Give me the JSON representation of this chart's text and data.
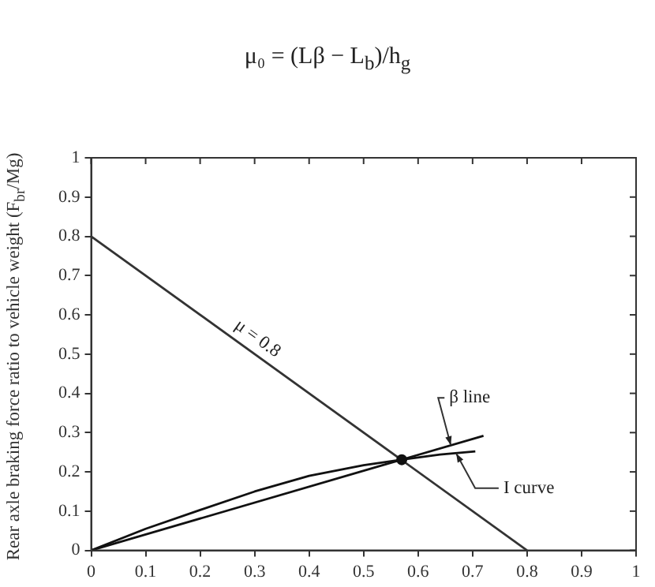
{
  "chart_data": {
    "type": "line",
    "title": "μ₀ = (Lβ − L$_{b}$)/h$_{g}$",
    "ylabel": "Rear axle braking force ratio to vehicle weight (F$_{br}$/Mg)",
    "xlim": [
      0,
      1
    ],
    "ylim": [
      0,
      1
    ],
    "xticks": [
      0,
      0.1,
      0.2,
      0.3,
      0.4,
      0.5,
      0.6,
      0.7,
      0.8,
      0.9,
      1
    ],
    "yticks": [
      0,
      0.1,
      0.2,
      0.3,
      0.4,
      0.5,
      0.6,
      0.7,
      0.8,
      0.9,
      1
    ],
    "grid": false,
    "legend": false,
    "marker": "none",
    "line_style": "solid",
    "series": [
      {
        "color": "#333333",
        "x": [
          0,
          0.8
        ],
        "values": [
          0.8,
          0
        ]
      },
      {
        "color": "#111111",
        "x": [
          0,
          0.72
        ],
        "values": [
          0,
          0.292
        ]
      },
      {
        "color": "#111111",
        "x": [
          0,
          0.1,
          0.2,
          0.3,
          0.4,
          0.5,
          0.57,
          0.64,
          0.705
        ],
        "values": [
          0,
          0.055,
          0.103,
          0.15,
          0.19,
          0.217,
          0.231,
          0.244,
          0.252
        ]
      },
      {
        "type": "scatter",
        "color": "#111111",
        "x": [
          0.57
        ],
        "values": [
          0.231
        ],
        "marker": "circle"
      }
    ],
    "annotations": [
      {
        "text": "μ = 0.8",
        "x": 0.29,
        "y": 0.51
      },
      {
        "text": "β line",
        "x": 0.66,
        "y": 0.268
      },
      {
        "text": "I curve",
        "x": 0.67,
        "y": 0.247
      }
    ]
  }
}
